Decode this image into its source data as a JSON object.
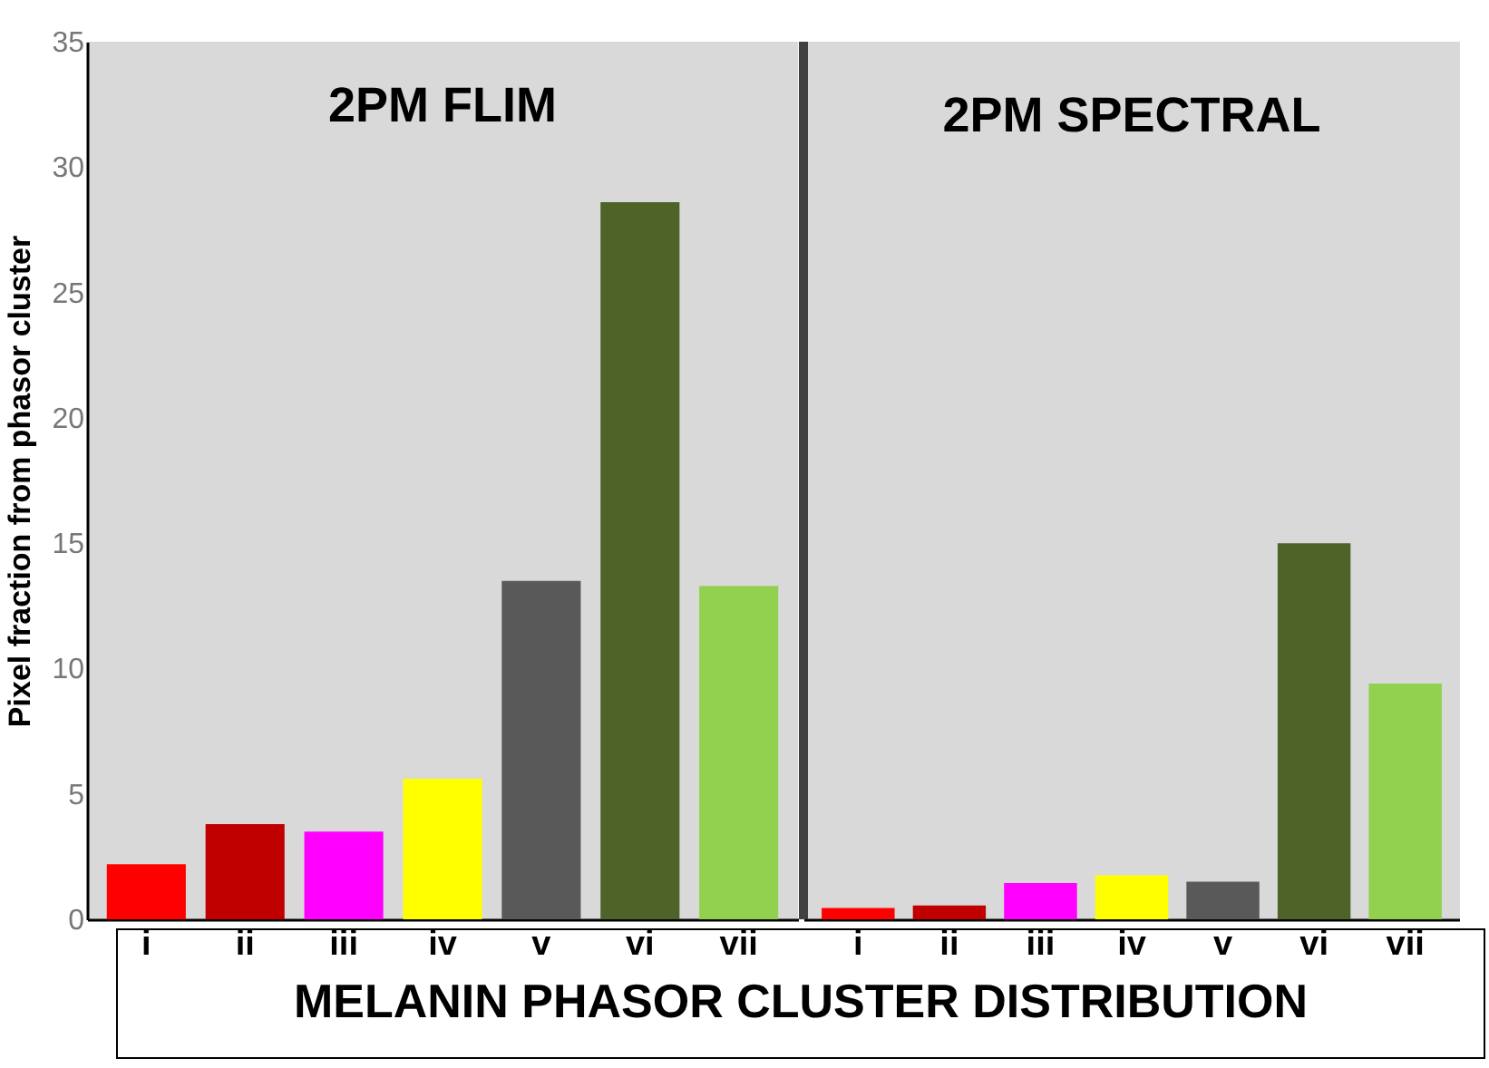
{
  "chart_data": [
    {
      "type": "bar",
      "title": "2PM FLIM",
      "ylabel": "Pixel fraction from phasor cluster",
      "xlabel": "MELANIN PHASOR CLUSTER DISTRIBUTION",
      "categories": [
        "i",
        "ii",
        "iii",
        "iv",
        "v",
        "vi",
        "vii"
      ],
      "values": [
        2.2,
        3.8,
        3.5,
        5.6,
        13.5,
        28.6,
        13.3
      ],
      "colors": [
        "#ff0000",
        "#c00000",
        "#ff00ff",
        "#ffff00",
        "#595959",
        "#4f6228",
        "#92d050"
      ],
      "ylim": [
        0,
        35
      ],
      "yticks": [
        0,
        5,
        10,
        15,
        20,
        25,
        30,
        35
      ]
    },
    {
      "type": "bar",
      "title": "2PM SPECTRAL",
      "categories": [
        "i",
        "ii",
        "iii",
        "iv",
        "v",
        "vi",
        "vii"
      ],
      "values": [
        0.45,
        0.55,
        1.45,
        1.75,
        1.5,
        15.0,
        9.4
      ],
      "colors": [
        "#ff0000",
        "#c00000",
        "#ff00ff",
        "#ffff00",
        "#595959",
        "#4f6228",
        "#92d050"
      ],
      "ylim": [
        0,
        35
      ],
      "yticks": [
        0,
        5,
        10,
        15,
        20,
        25,
        30,
        35
      ],
      "tick_labels": "x"
    }
  ]
}
